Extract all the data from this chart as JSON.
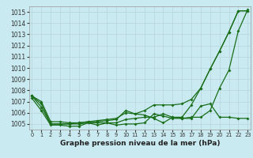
{
  "x": [
    0,
    1,
    2,
    3,
    4,
    5,
    6,
    7,
    8,
    9,
    10,
    11,
    12,
    13,
    14,
    15,
    16,
    17,
    18,
    19,
    20,
    21,
    22,
    23
  ],
  "line1": [
    1007.5,
    1006.8,
    1005.0,
    1005.0,
    1005.0,
    1005.0,
    1005.1,
    1005.1,
    1005.1,
    1005.1,
    1005.4,
    1005.5,
    1005.6,
    1005.6,
    1005.9,
    1005.6,
    1005.5,
    1005.6,
    1005.6,
    1006.2,
    1008.2,
    1009.8,
    1013.3,
    1015.2
  ],
  "line2": [
    1007.5,
    1006.5,
    1005.0,
    1005.0,
    1005.0,
    1005.1,
    1005.2,
    1005.2,
    1005.3,
    1005.4,
    1006.2,
    1005.9,
    1005.8,
    1005.5,
    1005.1,
    1005.6,
    1005.6,
    1006.7,
    1008.2,
    1009.9,
    1011.5,
    1013.2,
    1015.1,
    1015.1
  ],
  "line3": [
    1007.5,
    1007.0,
    1005.2,
    1005.2,
    1005.1,
    1005.1,
    1005.2,
    1005.3,
    1005.4,
    1005.5,
    1006.0,
    1005.9,
    1006.2,
    1006.7,
    1006.7,
    1006.7,
    1006.8,
    1007.2,
    1008.2,
    1009.9,
    1011.5,
    1013.2,
    1015.1,
    1015.1
  ],
  "line4": [
    1007.3,
    1006.2,
    1004.9,
    1004.9,
    1004.8,
    1004.8,
    1005.1,
    1004.9,
    1005.1,
    1004.9,
    1005.0,
    1005.0,
    1005.1,
    1005.9,
    1005.7,
    1005.5,
    1005.5,
    1005.5,
    1006.6,
    1006.8,
    1005.6,
    1005.6,
    1005.5,
    1005.5
  ],
  "line_color": "#1a6e1a",
  "bg_color": "#c8eaf0",
  "grid_color": "#b8d4dc",
  "ylim": [
    1004.5,
    1015.5
  ],
  "xlim": [
    -0.3,
    23.3
  ],
  "yticks": [
    1005,
    1006,
    1007,
    1008,
    1009,
    1010,
    1011,
    1012,
    1013,
    1014,
    1015
  ],
  "xticks": [
    0,
    1,
    2,
    3,
    4,
    5,
    6,
    7,
    8,
    9,
    10,
    11,
    12,
    13,
    14,
    15,
    16,
    17,
    18,
    19,
    20,
    21,
    22,
    23
  ],
  "xlabel": "Graphe pression niveau de la mer (hPa)"
}
